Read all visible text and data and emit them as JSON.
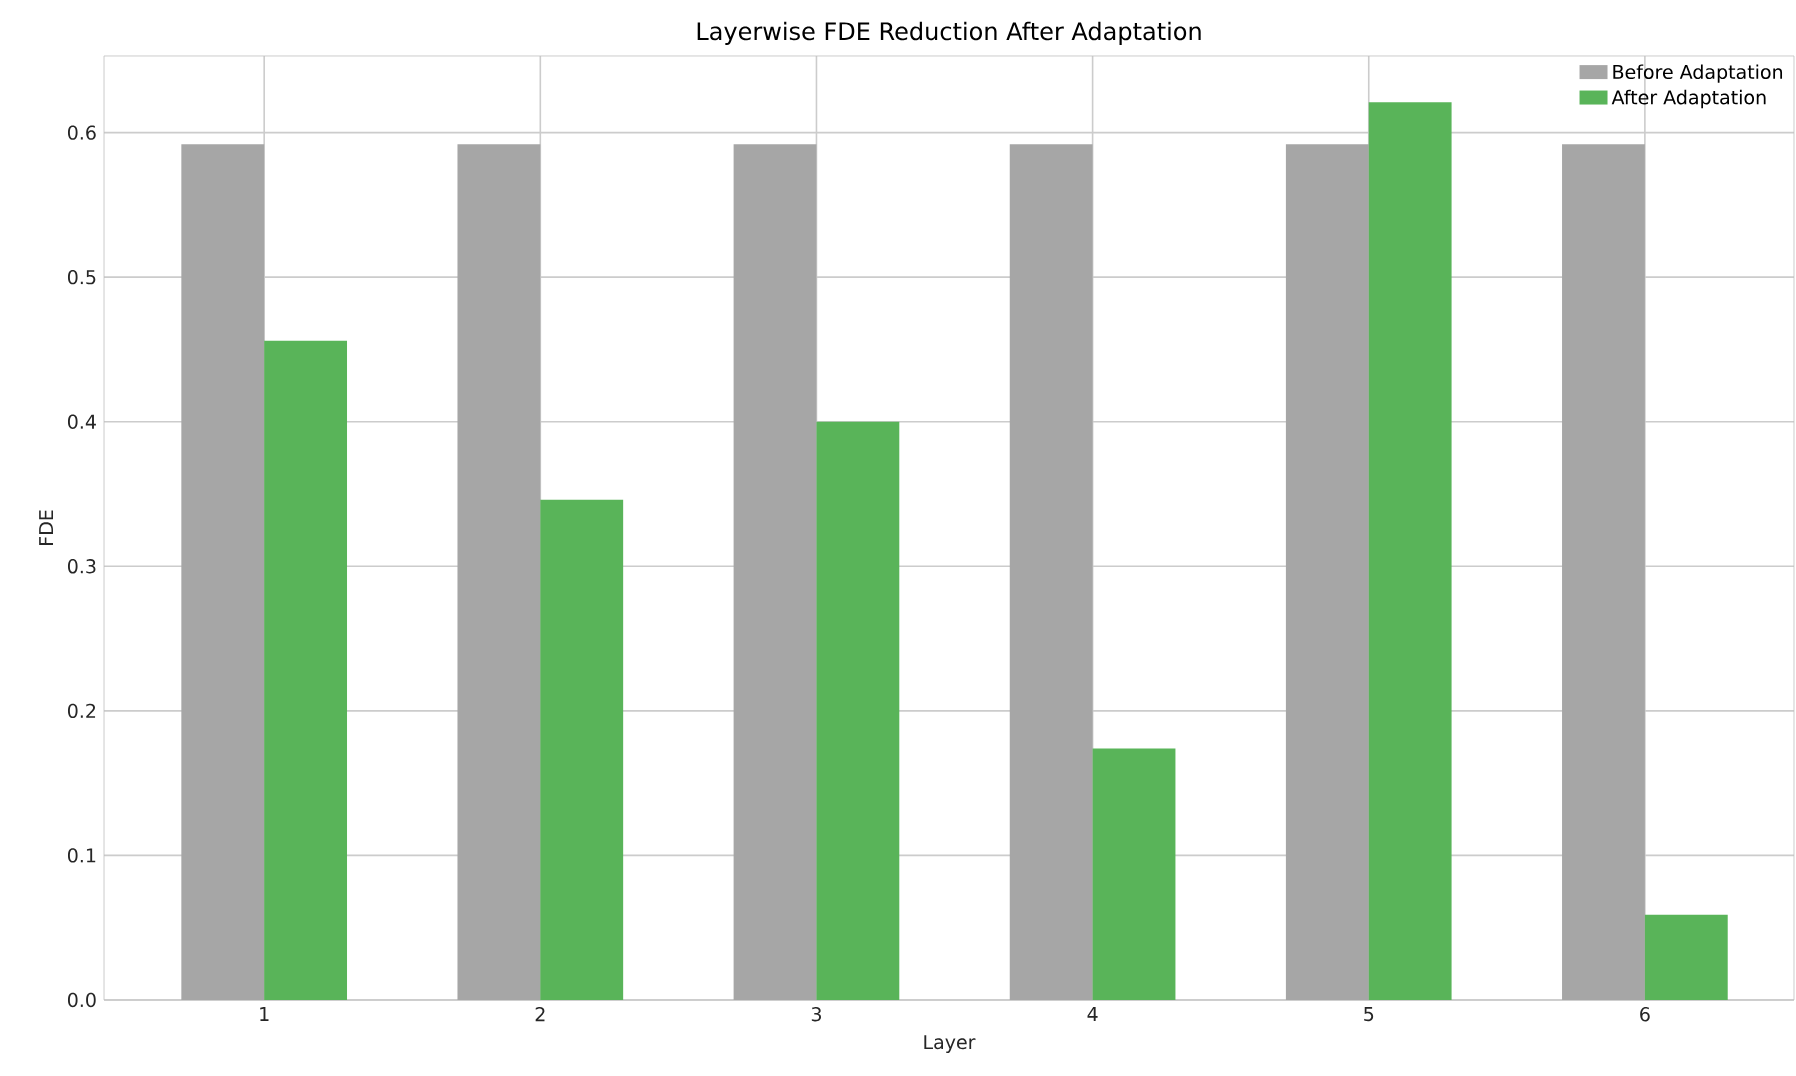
{
  "chart_data": {
    "type": "bar",
    "title": "Layerwise FDE Reduction After Adaptation",
    "xlabel": "Layer",
    "ylabel": "FDE",
    "categories": [
      "1",
      "2",
      "3",
      "4",
      "5",
      "6"
    ],
    "series": [
      {
        "name": "Before Adaptation",
        "color": "#a6a6a6",
        "values": [
          0.592,
          0.592,
          0.592,
          0.592,
          0.592,
          0.592
        ]
      },
      {
        "name": "After Adaptation",
        "color": "#59b459",
        "values": [
          0.456,
          0.346,
          0.4,
          0.174,
          0.621,
          0.059
        ]
      }
    ],
    "ylim": [
      0,
      0.653
    ],
    "yticks": [
      {
        "value": 0,
        "label": "0.0"
      },
      0.1,
      0.2,
      0.3,
      0.4,
      0.5,
      0.6
    ],
    "grid": true,
    "legend": "top right"
  }
}
